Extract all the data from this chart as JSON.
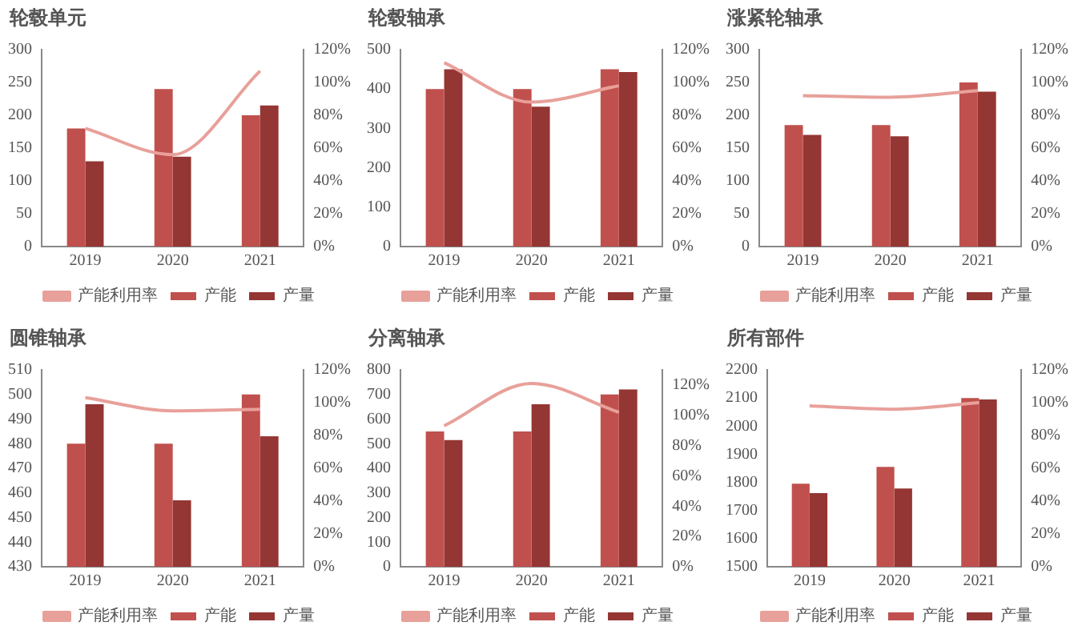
{
  "chart_data": [
    {
      "type": "bar",
      "title": "轮毂单元",
      "categories": [
        "2019",
        "2020",
        "2021"
      ],
      "series": [
        {
          "name": "产能",
          "color": "#c0504d",
          "values": [
            180,
            240,
            200
          ]
        },
        {
          "name": "产量",
          "color": "#943634",
          "values": [
            130,
            137,
            215
          ]
        },
        {
          "name": "产能利用率",
          "type": "line",
          "axis": "y2",
          "color": "#e8a09a",
          "values": [
            72,
            56,
            107
          ]
        }
      ],
      "ylim": [
        0,
        300
      ],
      "yticks": [
        0,
        50,
        100,
        150,
        200,
        250,
        300
      ],
      "y2lim": [
        0,
        120
      ],
      "y2ticks": [
        {
          "value": 0,
          "label": "0%"
        },
        {
          "value": 20,
          "label": "20%"
        },
        {
          "value": 40,
          "label": "40%"
        },
        {
          "value": 60,
          "label": "60%"
        },
        {
          "value": 80,
          "label": "80%"
        },
        {
          "value": 100,
          "label": "100%"
        },
        {
          "value": 120,
          "label": "120%"
        }
      ],
      "legend": "bottom",
      "grid": false,
      "marker": "none"
    },
    {
      "type": "bar",
      "title": "轮毂轴承",
      "categories": [
        "2019",
        "2020",
        "2021"
      ],
      "series": [
        {
          "name": "产能",
          "color": "#c0504d",
          "values": [
            400,
            400,
            450
          ]
        },
        {
          "name": "产量",
          "color": "#943634",
          "values": [
            450,
            355,
            443
          ]
        },
        {
          "name": "产能利用率",
          "type": "line",
          "axis": "y2",
          "color": "#e8a09a",
          "values": [
            112,
            88,
            98
          ]
        }
      ],
      "ylim": [
        0,
        500
      ],
      "yticks": [
        0,
        100,
        200,
        300,
        400,
        500
      ],
      "y2lim": [
        0,
        120
      ],
      "y2ticks": [
        {
          "value": 0,
          "label": "0%"
        },
        {
          "value": 20,
          "label": "20%"
        },
        {
          "value": 40,
          "label": "40%"
        },
        {
          "value": 60,
          "label": "60%"
        },
        {
          "value": 80,
          "label": "80%"
        },
        {
          "value": 100,
          "label": "100%"
        },
        {
          "value": 120,
          "label": "120%"
        }
      ],
      "legend": "bottom",
      "grid": false,
      "marker": "none"
    },
    {
      "type": "bar",
      "title": "涨紧轮轴承",
      "categories": [
        "2019",
        "2020",
        "2021"
      ],
      "series": [
        {
          "name": "产能",
          "color": "#c0504d",
          "values": [
            185,
            185,
            250
          ]
        },
        {
          "name": "产量",
          "color": "#943634",
          "values": [
            170,
            168,
            236
          ]
        },
        {
          "name": "产能利用率",
          "type": "line",
          "axis": "y2",
          "color": "#e8a09a",
          "values": [
            92,
            91,
            95
          ]
        }
      ],
      "ylim": [
        0,
        300
      ],
      "yticks": [
        0,
        50,
        100,
        150,
        200,
        250,
        300
      ],
      "y2lim": [
        0,
        120
      ],
      "y2ticks": [
        {
          "value": 0,
          "label": "0%"
        },
        {
          "value": 20,
          "label": "20%"
        },
        {
          "value": 40,
          "label": "40%"
        },
        {
          "value": 60,
          "label": "60%"
        },
        {
          "value": 80,
          "label": "80%"
        },
        {
          "value": 100,
          "label": "100%"
        },
        {
          "value": 120,
          "label": "120%"
        }
      ],
      "legend": "bottom",
      "grid": false,
      "marker": "none"
    },
    {
      "type": "bar",
      "title": "圆锥轴承",
      "categories": [
        "2019",
        "2020",
        "2021"
      ],
      "series": [
        {
          "name": "产能",
          "color": "#c0504d",
          "values": [
            480,
            480,
            500
          ]
        },
        {
          "name": "产量",
          "color": "#943634",
          "values": [
            496,
            457,
            483
          ]
        },
        {
          "name": "产能利用率",
          "type": "line",
          "axis": "y2",
          "color": "#e8a09a",
          "values": [
            103,
            95,
            96
          ]
        }
      ],
      "ylim": [
        430,
        510
      ],
      "yticks": [
        430,
        440,
        450,
        460,
        470,
        480,
        490,
        500,
        510
      ],
      "y2lim": [
        0,
        120
      ],
      "y2ticks": [
        {
          "value": 0,
          "label": "0%"
        },
        {
          "value": 20,
          "label": "20%"
        },
        {
          "value": 40,
          "label": "40%"
        },
        {
          "value": 60,
          "label": "60%"
        },
        {
          "value": 80,
          "label": "80%"
        },
        {
          "value": 100,
          "label": "100%"
        },
        {
          "value": 120,
          "label": "120%"
        }
      ],
      "legend": "bottom",
      "grid": false,
      "marker": "none"
    },
    {
      "type": "bar",
      "title": "分离轴承",
      "categories": [
        "2019",
        "2020",
        "2021"
      ],
      "series": [
        {
          "name": "产能",
          "color": "#c0504d",
          "values": [
            550,
            550,
            700
          ]
        },
        {
          "name": "产量",
          "color": "#943634",
          "values": [
            515,
            660,
            720
          ]
        },
        {
          "name": "产能利用率",
          "type": "line",
          "axis": "y2",
          "color": "#e8a09a",
          "values": [
            93,
            121,
            102
          ]
        }
      ],
      "ylim": [
        0,
        800
      ],
      "yticks": [
        0,
        100,
        200,
        300,
        400,
        500,
        600,
        700,
        800
      ],
      "y2lim": [
        0,
        130
      ],
      "y2ticks": [
        {
          "value": 0,
          "label": "0%"
        },
        {
          "value": 20,
          "label": "20%"
        },
        {
          "value": 40,
          "label": "40%"
        },
        {
          "value": 60,
          "label": "60%"
        },
        {
          "value": 80,
          "label": "80%"
        },
        {
          "value": 100,
          "label": "100%"
        },
        {
          "value": 120,
          "label": "120%"
        }
      ],
      "legend": "bottom",
      "grid": false,
      "marker": "none"
    },
    {
      "type": "bar",
      "title": "所有部件",
      "categories": [
        "2019",
        "2020",
        "2021"
      ],
      "series": [
        {
          "name": "产能",
          "color": "#c0504d",
          "values": [
            1795,
            1855,
            2100
          ]
        },
        {
          "name": "产量",
          "color": "#943634",
          "values": [
            1762,
            1778,
            2095
          ]
        },
        {
          "name": "产能利用率",
          "type": "line",
          "axis": "y2",
          "color": "#e8a09a",
          "values": [
            98,
            96,
            100
          ]
        }
      ],
      "ylim": [
        1500,
        2200
      ],
      "yticks": [
        1500,
        1600,
        1700,
        1800,
        1900,
        2000,
        2100,
        2200
      ],
      "y2lim": [
        0,
        120
      ],
      "y2ticks": [
        {
          "value": 0,
          "label": "0%"
        },
        {
          "value": 20,
          "label": "20%"
        },
        {
          "value": 40,
          "label": "40%"
        },
        {
          "value": 60,
          "label": "60%"
        },
        {
          "value": 80,
          "label": "80%"
        },
        {
          "value": 100,
          "label": "100%"
        },
        {
          "value": 120,
          "label": "120%"
        }
      ],
      "legend": "bottom",
      "grid": false,
      "marker": "none"
    }
  ]
}
